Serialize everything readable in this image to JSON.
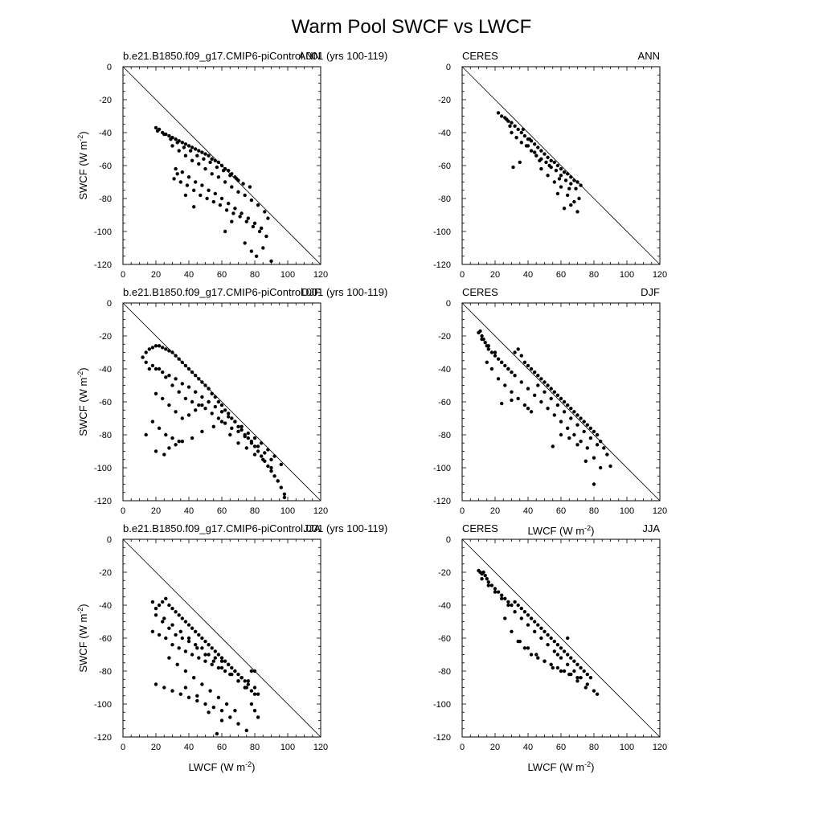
{
  "title": "Warm Pool SWCF vs LWCF",
  "colors": {
    "marker": "#000000",
    "axis": "#000000",
    "background": "#ffffff"
  },
  "chart_data": [
    {
      "type": "scatter",
      "panel": "model-ann",
      "left_label": "b.e21.B1850.f09_g17.CMIP6-piControl.001 (yrs 100-119)",
      "right_label": "ANN",
      "xlabel": "",
      "ylabel": "SWCF (W m<sup>-2</sup>)",
      "xlim": [
        0,
        120
      ],
      "ylim": [
        -120,
        0
      ],
      "xticks": [
        "0",
        "20",
        "40",
        "60",
        "80",
        "100",
        "120"
      ],
      "yticks": [
        "0",
        "-20",
        "-40",
        "-60",
        "-80",
        "-100",
        "-120"
      ],
      "reference_line": [
        [
          0,
          0
        ],
        [
          120,
          -120
        ]
      ],
      "x": [
        20,
        22,
        24,
        26,
        28,
        30,
        32,
        34,
        36,
        38,
        40,
        42,
        44,
        46,
        48,
        50,
        52,
        54,
        56,
        58,
        60,
        62,
        64,
        66,
        68,
        70,
        21,
        25,
        29,
        33,
        37,
        41,
        45,
        49,
        53,
        57,
        61,
        65,
        69,
        73,
        77,
        30,
        34,
        38,
        42,
        46,
        50,
        54,
        58,
        62,
        66,
        70,
        74,
        78,
        82,
        86,
        88,
        32,
        36,
        40,
        44,
        48,
        52,
        56,
        60,
        64,
        68,
        72,
        76,
        80,
        84,
        31,
        35,
        39,
        43,
        47,
        51,
        55,
        59,
        63,
        67,
        71,
        75,
        79,
        83,
        87,
        85,
        81,
        78,
        74,
        66,
        62,
        38,
        43,
        33,
        90
      ],
      "y": [
        -37,
        -38,
        -40,
        -41,
        -42,
        -43,
        -44,
        -45,
        -46,
        -47,
        -48,
        -49,
        -50,
        -51,
        -52,
        -53,
        -54,
        -56,
        -57,
        -58,
        -60,
        -62,
        -63,
        -65,
        -67,
        -69,
        -39,
        -41,
        -44,
        -46,
        -49,
        -51,
        -54,
        -56,
        -58,
        -61,
        -63,
        -66,
        -68,
        -71,
        -73,
        -48,
        -51,
        -54,
        -57,
        -59,
        -62,
        -65,
        -67,
        -70,
        -73,
        -76,
        -78,
        -81,
        -84,
        -88,
        -92,
        -62,
        -64,
        -67,
        -70,
        -72,
        -75,
        -77,
        -80,
        -83,
        -86,
        -89,
        -92,
        -95,
        -98,
        -68,
        -70,
        -72,
        -75,
        -78,
        -80,
        -82,
        -84,
        -87,
        -89,
        -91,
        -94,
        -97,
        -100,
        -103,
        -110,
        -115,
        -112,
        -107,
        -94,
        -100,
        -78,
        -85,
        -65,
        -118
      ]
    },
    {
      "type": "scatter",
      "panel": "ceres-ann",
      "left_label": "CERES",
      "right_label": "ANN",
      "xlabel": "",
      "ylabel": "",
      "xlim": [
        0,
        120
      ],
      "ylim": [
        -120,
        0
      ],
      "xticks": [
        "0",
        "20",
        "40",
        "60",
        "80",
        "100",
        "120"
      ],
      "yticks": [
        "0",
        "-20",
        "-40",
        "-60",
        "-80",
        "-100",
        "-120"
      ],
      "reference_line": [
        [
          0,
          0
        ],
        [
          120,
          -120
        ]
      ],
      "x": [
        22,
        24,
        26,
        28,
        30,
        32,
        34,
        36,
        38,
        40,
        42,
        44,
        46,
        48,
        50,
        52,
        54,
        56,
        58,
        60,
        62,
        64,
        66,
        68,
        70,
        72,
        30,
        33,
        36,
        39,
        42,
        45,
        48,
        51,
        54,
        57,
        60,
        63,
        66,
        69,
        31,
        35,
        40,
        44,
        48,
        52,
        56,
        60,
        64,
        68,
        27,
        29,
        37,
        41,
        47,
        53,
        59,
        65,
        71,
        62,
        66,
        70,
        58
      ],
      "y": [
        -28,
        -30,
        -31,
        -33,
        -34,
        -36,
        -38,
        -40,
        -42,
        -44,
        -45,
        -47,
        -49,
        -51,
        -53,
        -55,
        -57,
        -58,
        -60,
        -62,
        -64,
        -65,
        -67,
        -69,
        -70,
        -72,
        -40,
        -43,
        -46,
        -48,
        -51,
        -54,
        -56,
        -58,
        -61,
        -63,
        -66,
        -69,
        -71,
        -74,
        -61,
        -58,
        -48,
        -52,
        -62,
        -66,
        -70,
        -73,
        -78,
        -82,
        -32,
        -36,
        -38,
        -44,
        -57,
        -60,
        -68,
        -74,
        -80,
        -86,
        -84,
        -88,
        -77
      ]
    },
    {
      "type": "scatter",
      "panel": "model-djf",
      "left_label": "b.e21.B1850.f09_g17.CMIP6-piControl.001 (yrs 100-119)",
      "right_label": "DJF",
      "xlabel": "",
      "ylabel": "SWCF (W m<sup>-2</sup>)",
      "xlim": [
        0,
        120
      ],
      "ylim": [
        -120,
        0
      ],
      "xticks": [
        "0",
        "20",
        "40",
        "60",
        "80",
        "100",
        "120"
      ],
      "yticks": [
        "0",
        "-20",
        "-40",
        "-60",
        "-80",
        "-100",
        "-120"
      ],
      "reference_line": [
        [
          0,
          0
        ],
        [
          120,
          -120
        ]
      ],
      "x": [
        12,
        14,
        16,
        18,
        20,
        22,
        24,
        26,
        28,
        30,
        32,
        34,
        36,
        38,
        40,
        42,
        44,
        46,
        48,
        50,
        52,
        54,
        56,
        58,
        60,
        62,
        64,
        66,
        68,
        70,
        72,
        74,
        76,
        78,
        80,
        82,
        84,
        86,
        88,
        90,
        92,
        94,
        96,
        98,
        16,
        20,
        24,
        28,
        32,
        36,
        40,
        44,
        48,
        52,
        56,
        60,
        64,
        68,
        72,
        76,
        80,
        84,
        88,
        92,
        96,
        14,
        18,
        22,
        26,
        30,
        34,
        38,
        42,
        46,
        50,
        54,
        58,
        62,
        66,
        70,
        74,
        78,
        82,
        86,
        90,
        20,
        24,
        28,
        32,
        36,
        40,
        44,
        48,
        52,
        18,
        22,
        26,
        30,
        34,
        14,
        20,
        25,
        28,
        32,
        36,
        42,
        48,
        55,
        60,
        65,
        70,
        75,
        80,
        85,
        90,
        94,
        98
      ],
      "y": [
        -33,
        -30,
        -28,
        -27,
        -26,
        -26,
        -27,
        -28,
        -29,
        -30,
        -32,
        -34,
        -36,
        -38,
        -40,
        -42,
        -44,
        -46,
        -48,
        -50,
        -52,
        -55,
        -57,
        -60,
        -62,
        -65,
        -67,
        -70,
        -72,
        -75,
        -77,
        -80,
        -82,
        -85,
        -87,
        -90,
        -93,
        -96,
        -99,
        -102,
        -105,
        -108,
        -112,
        -118,
        -40,
        -40,
        -42,
        -44,
        -46,
        -49,
        -51,
        -54,
        -57,
        -60,
        -63,
        -66,
        -69,
        -72,
        -75,
        -79,
        -82,
        -85,
        -89,
        -93,
        -98,
        -36,
        -38,
        -40,
        -45,
        -50,
        -54,
        -58,
        -60,
        -62,
        -64,
        -67,
        -70,
        -73,
        -76,
        -78,
        -81,
        -84,
        -87,
        -91,
        -95,
        -55,
        -58,
        -62,
        -66,
        -70,
        -68,
        -65,
        -62,
        -60,
        -72,
        -76,
        -80,
        -82,
        -84,
        -80,
        -90,
        -92,
        -88,
        -86,
        -84,
        -82,
        -78,
        -75,
        -72,
        -80,
        -85,
        -88,
        -92,
        -95,
        -100,
        -108,
        -116
      ]
    },
    {
      "type": "scatter",
      "panel": "ceres-djf",
      "left_label": "CERES",
      "right_label": "DJF",
      "xlabel": "LWCF (W m<sup>-2</sup>)",
      "ylabel": "",
      "xlim": [
        0,
        120
      ],
      "ylim": [
        -120,
        0
      ],
      "xticks": [
        "0",
        "20",
        "40",
        "60",
        "80",
        "100",
        "120"
      ],
      "yticks": [
        "0",
        "-20",
        "-40",
        "-60",
        "-80",
        "-100",
        "-120"
      ],
      "reference_line": [
        [
          0,
          0
        ],
        [
          120,
          -120
        ]
      ],
      "x": [
        10,
        11,
        12,
        13,
        14,
        15,
        16,
        18,
        20,
        22,
        24,
        26,
        28,
        30,
        32,
        34,
        36,
        38,
        40,
        42,
        44,
        46,
        48,
        50,
        52,
        54,
        56,
        58,
        60,
        62,
        64,
        66,
        68,
        70,
        72,
        74,
        76,
        78,
        80,
        82,
        84,
        86,
        88,
        90,
        12,
        16,
        20,
        24,
        28,
        32,
        36,
        40,
        44,
        48,
        52,
        56,
        60,
        64,
        68,
        72,
        76,
        80,
        84,
        15,
        18,
        22,
        26,
        30,
        34,
        38,
        42,
        46,
        50,
        54,
        58,
        62,
        66,
        70,
        74,
        78,
        82,
        24,
        30,
        40,
        55,
        60,
        65,
        70,
        75,
        80
      ],
      "y": [
        -18,
        -17,
        -20,
        -22,
        -24,
        -26,
        -28,
        -30,
        -32,
        -34,
        -36,
        -38,
        -40,
        -42,
        -30,
        -28,
        -32,
        -36,
        -38,
        -40,
        -42,
        -44,
        -46,
        -48,
        -50,
        -52,
        -54,
        -56,
        -58,
        -60,
        -62,
        -64,
        -66,
        -68,
        -70,
        -72,
        -74,
        -76,
        -78,
        -80,
        -84,
        -88,
        -92,
        -99,
        -22,
        -26,
        -30,
        -36,
        -40,
        -44,
        -48,
        -52,
        -56,
        -60,
        -64,
        -68,
        -72,
        -76,
        -80,
        -84,
        -88,
        -94,
        -100,
        -36,
        -40,
        -46,
        -50,
        -54,
        -58,
        -62,
        -66,
        -50,
        -54,
        -58,
        -62,
        -66,
        -70,
        -74,
        -78,
        -82,
        -86,
        -61,
        -59,
        -64,
        -87,
        -80,
        -82,
        -86,
        -96,
        -110
      ]
    },
    {
      "type": "scatter",
      "panel": "model-jja",
      "left_label": "b.e21.B1850.f09_g17.CMIP6-piControl.001 (yrs 100-119)",
      "right_label": "JJA",
      "xlabel": "LWCF (W m<sup>-2</sup>)",
      "ylabel": "SWCF (W m<sup>-2</sup>)",
      "xlim": [
        0,
        120
      ],
      "ylim": [
        -120,
        0
      ],
      "xticks": [
        "0",
        "20",
        "40",
        "60",
        "80",
        "100",
        "120"
      ],
      "yticks": [
        "0",
        "-20",
        "-40",
        "-60",
        "-80",
        "-100",
        "-120"
      ],
      "reference_line": [
        [
          0,
          0
        ],
        [
          120,
          -120
        ]
      ],
      "x": [
        18,
        20,
        22,
        24,
        26,
        28,
        30,
        32,
        34,
        36,
        38,
        40,
        42,
        44,
        46,
        48,
        50,
        52,
        54,
        56,
        58,
        60,
        62,
        64,
        66,
        68,
        70,
        72,
        74,
        76,
        78,
        80,
        20,
        24,
        28,
        32,
        36,
        40,
        44,
        48,
        52,
        56,
        60,
        64,
        68,
        72,
        76,
        80,
        18,
        22,
        26,
        30,
        34,
        38,
        42,
        46,
        50,
        54,
        58,
        62,
        66,
        70,
        74,
        78,
        82,
        25,
        30,
        35,
        40,
        45,
        50,
        55,
        60,
        65,
        70,
        75,
        80,
        28,
        33,
        38,
        43,
        48,
        53,
        58,
        63,
        68,
        20,
        25,
        30,
        35,
        40,
        45,
        50,
        55,
        60,
        65,
        70,
        75,
        57,
        60,
        52,
        45,
        38,
        78,
        80,
        82
      ],
      "y": [
        -38,
        -42,
        -40,
        -38,
        -36,
        -40,
        -42,
        -44,
        -46,
        -48,
        -50,
        -52,
        -54,
        -56,
        -58,
        -60,
        -62,
        -64,
        -66,
        -68,
        -70,
        -72,
        -74,
        -76,
        -78,
        -80,
        -82,
        -84,
        -86,
        -88,
        -80,
        -80,
        -46,
        -50,
        -54,
        -58,
        -60,
        -62,
        -64,
        -66,
        -70,
        -72,
        -74,
        -76,
        -80,
        -84,
        -86,
        -90,
        -56,
        -58,
        -60,
        -64,
        -66,
        -68,
        -70,
        -72,
        -74,
        -76,
        -78,
        -80,
        -82,
        -86,
        -90,
        -92,
        -94,
        -48,
        -52,
        -56,
        -60,
        -66,
        -70,
        -74,
        -78,
        -82,
        -86,
        -90,
        -94,
        -72,
        -76,
        -80,
        -84,
        -88,
        -92,
        -96,
        -100,
        -104,
        -88,
        -90,
        -92,
        -94,
        -96,
        -98,
        -100,
        -102,
        -104,
        -108,
        -112,
        -116,
        -118,
        -110,
        -105,
        -95,
        -90,
        -100,
        -104,
        -108
      ]
    },
    {
      "type": "scatter",
      "panel": "ceres-jja",
      "left_label": "CERES",
      "right_label": "JJA",
      "xlabel": "LWCF (W m<sup>-2</sup>)",
      "ylabel": "",
      "xlim": [
        0,
        120
      ],
      "ylim": [
        -120,
        0
      ],
      "xticks": [
        "0",
        "20",
        "40",
        "60",
        "80",
        "100",
        "120"
      ],
      "yticks": [
        "0",
        "-20",
        "-40",
        "-60",
        "-80",
        "-100",
        "-120"
      ],
      "reference_line": [
        [
          0,
          0
        ],
        [
          120,
          -120
        ]
      ],
      "x": [
        10,
        11,
        12,
        13,
        14,
        15,
        16,
        18,
        20,
        22,
        24,
        26,
        28,
        30,
        32,
        34,
        36,
        38,
        40,
        42,
        44,
        46,
        48,
        50,
        52,
        54,
        56,
        58,
        60,
        62,
        64,
        66,
        68,
        70,
        72,
        74,
        76,
        78,
        12,
        16,
        20,
        24,
        28,
        32,
        36,
        40,
        44,
        48,
        52,
        56,
        60,
        64,
        68,
        72,
        76,
        80,
        26,
        30,
        34,
        38,
        42,
        46,
        50,
        54,
        58,
        62,
        66,
        70,
        35,
        40,
        45,
        50,
        55,
        60,
        65,
        70,
        75,
        82,
        64,
        58
      ],
      "y": [
        -19,
        -20,
        -21,
        -20,
        -22,
        -24,
        -26,
        -28,
        -30,
        -32,
        -34,
        -36,
        -38,
        -40,
        -38,
        -40,
        -42,
        -44,
        -46,
        -48,
        -50,
        -52,
        -54,
        -56,
        -58,
        -60,
        -62,
        -64,
        -66,
        -68,
        -70,
        -72,
        -74,
        -76,
        -78,
        -80,
        -82,
        -84,
        -24,
        -28,
        -32,
        -36,
        -40,
        -44,
        -48,
        -52,
        -56,
        -60,
        -64,
        -68,
        -72,
        -76,
        -80,
        -84,
        -88,
        -92,
        -48,
        -56,
        -62,
        -66,
        -70,
        -72,
        -74,
        -76,
        -78,
        -80,
        -82,
        -84,
        -62,
        -66,
        -70,
        -74,
        -78,
        -80,
        -82,
        -86,
        -90,
        -94,
        -60,
        -70
      ]
    }
  ]
}
